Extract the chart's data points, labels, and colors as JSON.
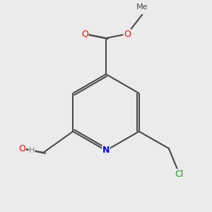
{
  "bg_color": "#ebebeb",
  "figsize": [
    3.0,
    3.0
  ],
  "dpi": 100,
  "bond_color": "#4a4a4a",
  "bond_lw": 1.5,
  "atom_colors": {
    "O": "#ff0000",
    "N": "#0000ff",
    "Cl": "#228B22",
    "C": "#4a4a4a",
    "H": "#808080"
  }
}
